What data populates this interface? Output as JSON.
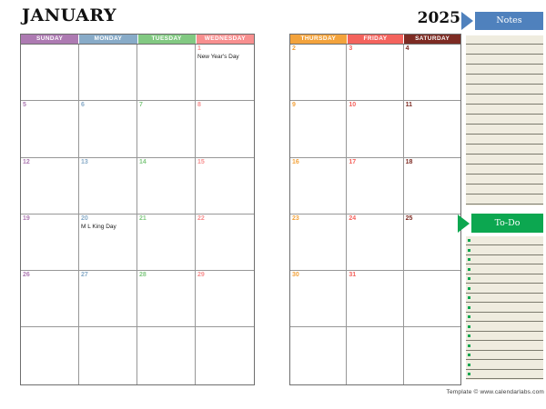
{
  "header": {
    "month": "JANUARY",
    "year": "2025"
  },
  "colors": {
    "sunday": "#ad7ab2",
    "monday": "#88abc8",
    "tuesday": "#82c982",
    "wednesday": "#f88f8f",
    "thursday": "#f3a33c",
    "friday": "#f4635d",
    "saturday": "#7d2b23",
    "notes_banner": "#4f81bd",
    "todo_banner": "#0ca750",
    "line_paper": "#efecdf"
  },
  "left_grid": {
    "headers": [
      {
        "label": "SUNDAY",
        "color": "#ad7ab2"
      },
      {
        "label": "MONDAY",
        "color": "#88abc8"
      },
      {
        "label": "TUESDAY",
        "color": "#82c982"
      },
      {
        "label": "WEDNESDAY",
        "color": "#f88f8f"
      }
    ],
    "weeks": [
      [
        null,
        null,
        null,
        {
          "date": "1",
          "event": "New Year's Day"
        }
      ],
      [
        {
          "date": "5"
        },
        {
          "date": "6"
        },
        {
          "date": "7"
        },
        {
          "date": "8"
        }
      ],
      [
        {
          "date": "12"
        },
        {
          "date": "13"
        },
        {
          "date": "14"
        },
        {
          "date": "15"
        }
      ],
      [
        {
          "date": "19"
        },
        {
          "date": "20",
          "event": "M L King Day"
        },
        {
          "date": "21"
        },
        {
          "date": "22"
        }
      ],
      [
        {
          "date": "26"
        },
        {
          "date": "27"
        },
        {
          "date": "28"
        },
        {
          "date": "29"
        }
      ],
      [
        null,
        null,
        null,
        null
      ]
    ]
  },
  "right_grid": {
    "headers": [
      {
        "label": "THURSDAY",
        "color": "#f3a33c"
      },
      {
        "label": "FRIDAY",
        "color": "#f4635d"
      },
      {
        "label": "SATURDAY",
        "color": "#7d2b23"
      }
    ],
    "weeks": [
      [
        {
          "date": "2"
        },
        {
          "date": "3"
        },
        {
          "date": "4"
        }
      ],
      [
        {
          "date": "9"
        },
        {
          "date": "10"
        },
        {
          "date": "11"
        }
      ],
      [
        {
          "date": "16"
        },
        {
          "date": "17"
        },
        {
          "date": "18"
        }
      ],
      [
        {
          "date": "23"
        },
        {
          "date": "24"
        },
        {
          "date": "25"
        }
      ],
      [
        {
          "date": "30"
        },
        {
          "date": "31"
        },
        null
      ],
      [
        null,
        null,
        null
      ]
    ]
  },
  "notes": {
    "label": "Notes",
    "line_count": 17
  },
  "todo": {
    "label": "To-Do",
    "line_count": 15
  },
  "footer": "Template © www.calendarlabs.com"
}
